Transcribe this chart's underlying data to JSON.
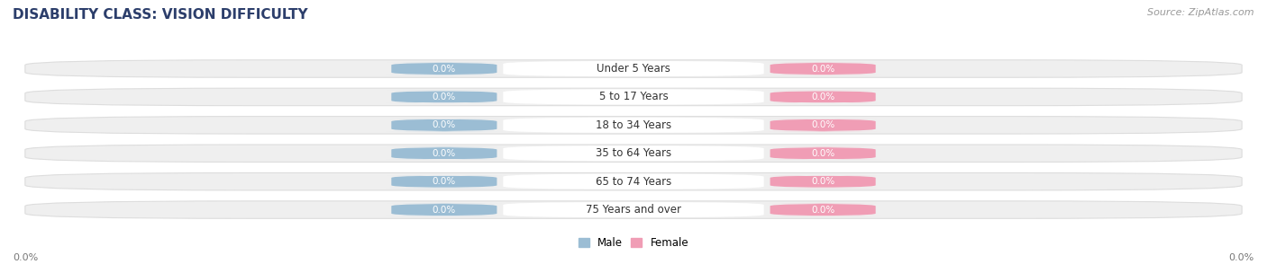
{
  "title": "DISABILITY CLASS: VISION DIFFICULTY",
  "source_text": "Source: ZipAtlas.com",
  "categories": [
    "Under 5 Years",
    "5 to 17 Years",
    "18 to 34 Years",
    "35 to 64 Years",
    "65 to 74 Years",
    "75 Years and over"
  ],
  "male_values": [
    0.0,
    0.0,
    0.0,
    0.0,
    0.0,
    0.0
  ],
  "female_values": [
    0.0,
    0.0,
    0.0,
    0.0,
    0.0,
    0.0
  ],
  "male_color": "#9bbdd4",
  "female_color": "#f09db5",
  "male_label": "Male",
  "female_label": "Female",
  "row_bg_color": "#efefef",
  "row_border_color": "#dddddd",
  "label_box_color": "#ffffff",
  "title_color": "#2c3e6b",
  "value_text_color": "#ffffff",
  "axis_label_color": "#777777",
  "source_color": "#999999",
  "x_tick_label_left": "0.0%",
  "x_tick_label_right": "0.0%",
  "figsize": [
    14.06,
    3.04
  ],
  "dpi": 100
}
